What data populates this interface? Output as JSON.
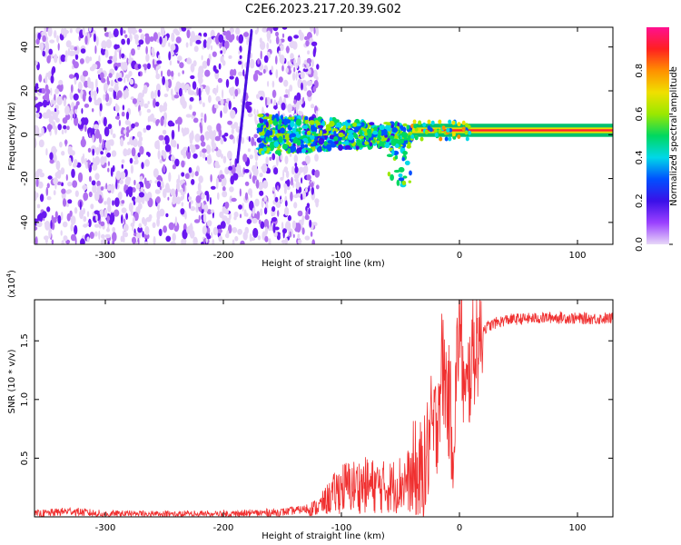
{
  "title": "C2E6.2023.217.20.39.G02",
  "chart_data": [
    {
      "type": "heatmap",
      "xlabel": "Height of straight line (km)",
      "ylabel": "Frequency (Hz)",
      "xlim": [
        -360,
        130
      ],
      "ylim": [
        -50,
        49
      ],
      "x_ticks": [
        -300,
        -200,
        -100,
        0,
        100
      ],
      "y_ticks": [
        -40,
        -20,
        0,
        20,
        40
      ],
      "colorbar": {
        "label": "Normalized spectral amplitude",
        "range": [
          0,
          1
        ],
        "ticks": [
          "0.0",
          "0.2",
          "0.4",
          "0.6",
          "0.8"
        ],
        "tick_values": [
          0,
          0.2,
          0.4,
          0.6,
          0.8
        ],
        "colors": [
          "#e8d8f8",
          "#9a40ff",
          "#3a10e8",
          "#0050ff",
          "#00d8e8",
          "#00d860",
          "#9ae800",
          "#f0e000",
          "#ff9000",
          "#ff2020",
          "#ff1090"
        ]
      },
      "regions": [
        {
          "description_range_km": [
            -360,
            -130
          ],
          "freq_spread_hz": [
            -50,
            49
          ],
          "amplitude": 0.05
        },
        {
          "description_range_km": [
            -170,
            -40
          ],
          "freq_center_hz": 0,
          "freq_spread_hz": [
            -25,
            18
          ],
          "amplitude": 0.3
        },
        {
          "description_range_km": [
            -40,
            130
          ],
          "freq_center_hz": 2,
          "freq_spread_hz": [
            -1,
            5
          ],
          "amplitude": 0.95
        }
      ]
    },
    {
      "type": "line",
      "xlabel": "Height of straight line (km)",
      "ylabel": "SNR (10 * v/v)",
      "y_multiplier": "(x10",
      "y_multiplier_exp": "4",
      "y_multiplier_close": ")",
      "xlim": [
        -360,
        130
      ],
      "ylim": [
        0,
        18500
      ],
      "x_ticks": [
        -300,
        -200,
        -100,
        0,
        100
      ],
      "y_ticks": [
        5000,
        10000,
        15000
      ],
      "y_tick_labels": [
        "0.5",
        "1.0",
        "1.5"
      ],
      "color": "#f03030",
      "series": [
        {
          "x": [
            -360,
            -330,
            -300,
            -250,
            -200,
            -150,
            -120,
            -100,
            -80,
            -60,
            -40,
            -30,
            -25,
            -20,
            -15,
            -10,
            -5,
            0,
            5,
            10,
            15,
            20,
            30,
            40,
            60,
            80,
            100,
            130
          ],
          "y": [
            200,
            500,
            200,
            200,
            200,
            400,
            800,
            2500,
            2700,
            2500,
            3200,
            3500,
            7000,
            7500,
            13000,
            10500,
            6500,
            17500,
            9000,
            13500,
            15000,
            16000,
            16500,
            16800,
            16900,
            17000,
            16900,
            16900
          ]
        }
      ]
    }
  ]
}
